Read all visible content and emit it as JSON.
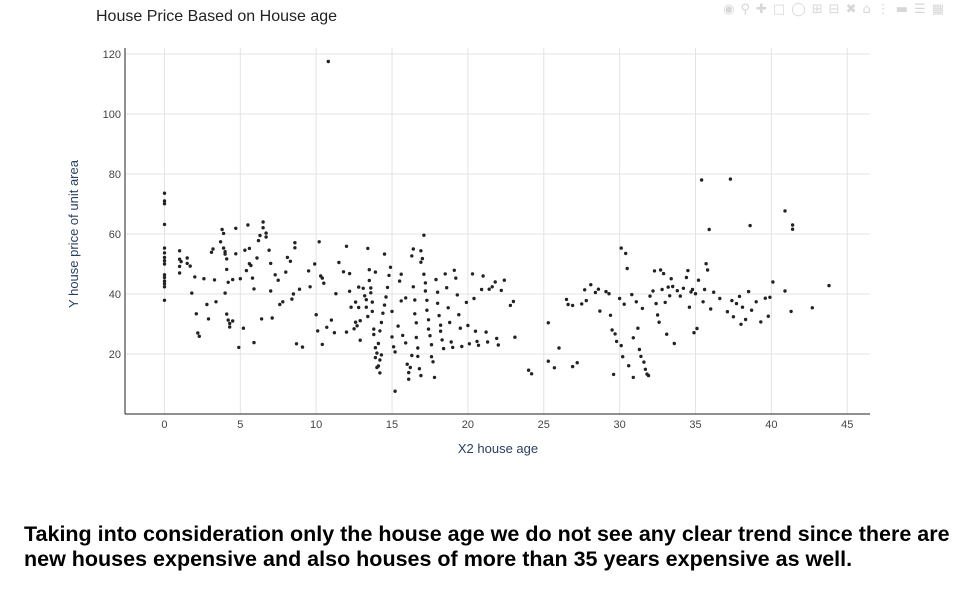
{
  "toolbar": {
    "icons": [
      "camera-icon",
      "zoom-icon",
      "pan-icon",
      "box-select-icon",
      "lasso-select-icon",
      "zoom-in-icon",
      "zoom-out-icon",
      "autoscale-icon",
      "reset-axes-icon",
      "spike-lines-icon",
      "hover-closest-icon",
      "hover-compare-icon",
      "plotly-logo-icon"
    ]
  },
  "chart_data": {
    "type": "scatter",
    "title": "House Price Based on House age",
    "xlabel": "X2 house age",
    "ylabel": "Y house price of unit area",
    "xlim": [
      -2.6,
      46.5
    ],
    "ylim": [
      0,
      122
    ],
    "xticks": [
      0,
      5,
      10,
      15,
      20,
      25,
      30,
      35,
      40,
      45
    ],
    "yticks": [
      20,
      40,
      60,
      80,
      100,
      120
    ],
    "grid": true,
    "legend": "none",
    "marker_color": "#222222",
    "points": [
      [
        0,
        73.6
      ],
      [
        0,
        71.0
      ],
      [
        0,
        70.1
      ],
      [
        0,
        63.2
      ],
      [
        0,
        55.3
      ],
      [
        0,
        53.7
      ],
      [
        0,
        52.2
      ],
      [
        0,
        51.1
      ],
      [
        0,
        50.0
      ],
      [
        0,
        46.4
      ],
      [
        0,
        45.5
      ],
      [
        0,
        44.3
      ],
      [
        0,
        43.4
      ],
      [
        0,
        42.4
      ],
      [
        0,
        37.9
      ],
      [
        1.0,
        54.4
      ],
      [
        1.0,
        51.6
      ],
      [
        1.0,
        49.2
      ],
      [
        1.0,
        47.0
      ],
      [
        1.1,
        50.8
      ],
      [
        1.5,
        50.2
      ],
      [
        1.7,
        49.3
      ],
      [
        1.5,
        52.0
      ],
      [
        2.0,
        45.7
      ],
      [
        1.8,
        40.3
      ],
      [
        2.1,
        33.4
      ],
      [
        2.2,
        27.0
      ],
      [
        2.3,
        25.9
      ],
      [
        2.6,
        45.1
      ],
      [
        2.8,
        36.5
      ],
      [
        2.9,
        31.7
      ],
      [
        3.2,
        55.0
      ],
      [
        3.1,
        53.9
      ],
      [
        3.3,
        44.7
      ],
      [
        3.4,
        37.4
      ],
      [
        3.7,
        57.4
      ],
      [
        3.8,
        61.5
      ],
      [
        3.9,
        60.2
      ],
      [
        3.9,
        55.3
      ],
      [
        4.0,
        54.1
      ],
      [
        4.0,
        53.3
      ],
      [
        4.1,
        51.7
      ],
      [
        4.1,
        48.2
      ],
      [
        4.2,
        43.9
      ],
      [
        4.0,
        40.3
      ],
      [
        4.1,
        33.3
      ],
      [
        4.2,
        31.3
      ],
      [
        4.3,
        30.2
      ],
      [
        4.3,
        29.0
      ],
      [
        4.5,
        44.8
      ],
      [
        4.5,
        31.0
      ],
      [
        4.7,
        61.9
      ],
      [
        4.7,
        53.4
      ],
      [
        5.0,
        45.1
      ],
      [
        4.9,
        22.2
      ],
      [
        5.2,
        28.6
      ],
      [
        5.3,
        54.6
      ],
      [
        5.4,
        47.8
      ],
      [
        5.5,
        63.0
      ],
      [
        5.6,
        55.2
      ],
      [
        5.6,
        50.1
      ],
      [
        5.7,
        49.5
      ],
      [
        5.8,
        45.3
      ],
      [
        5.9,
        41.7
      ],
      [
        5.9,
        23.8
      ],
      [
        6.1,
        52.0
      ],
      [
        6.2,
        57.8
      ],
      [
        6.3,
        59.5
      ],
      [
        6.4,
        31.7
      ],
      [
        6.5,
        62.1
      ],
      [
        6.5,
        64.0
      ],
      [
        6.7,
        60.3
      ],
      [
        6.7,
        59.0
      ],
      [
        6.9,
        54.6
      ],
      [
        7.0,
        41.0
      ],
      [
        7.0,
        50.2
      ],
      [
        7.1,
        32.0
      ],
      [
        7.3,
        46.4
      ],
      [
        7.5,
        44.6
      ],
      [
        7.6,
        36.5
      ],
      [
        7.8,
        37.4
      ],
      [
        8.0,
        47.3
      ],
      [
        8.1,
        52.2
      ],
      [
        8.3,
        50.9
      ],
      [
        8.4,
        38.3
      ],
      [
        8.5,
        40.0
      ],
      [
        8.6,
        55.4
      ],
      [
        8.6,
        57.1
      ],
      [
        8.7,
        23.4
      ],
      [
        8.9,
        41.6
      ],
      [
        9.1,
        22.3
      ],
      [
        9.5,
        47.7
      ],
      [
        9.6,
        42.4
      ],
      [
        9.9,
        50.0
      ],
      [
        10.0,
        33.1
      ],
      [
        10.1,
        27.7
      ],
      [
        10.2,
        57.4
      ],
      [
        10.3,
        46.0
      ],
      [
        10.4,
        45.3
      ],
      [
        10.5,
        43.6
      ],
      [
        10.4,
        23.2
      ],
      [
        10.7,
        28.9
      ],
      [
        10.8,
        117.5
      ],
      [
        11.0,
        31.3
      ],
      [
        11.2,
        27.1
      ],
      [
        11.3,
        40.1
      ],
      [
        11.5,
        50.5
      ],
      [
        11.8,
        47.4
      ],
      [
        12.0,
        55.9
      ],
      [
        12.2,
        46.8
      ],
      [
        12.2,
        40.9
      ],
      [
        12.0,
        27.3
      ],
      [
        12.3,
        35.6
      ],
      [
        12.5,
        28.4
      ],
      [
        12.6,
        37.3
      ],
      [
        12.6,
        30.6
      ],
      [
        12.7,
        29.4
      ],
      [
        12.8,
        35.5
      ],
      [
        12.9,
        31.1
      ],
      [
        12.8,
        42.3
      ],
      [
        12.9,
        24.6
      ],
      [
        13.1,
        41.9
      ],
      [
        13.2,
        39.4
      ],
      [
        13.3,
        38.1
      ],
      [
        13.3,
        35.6
      ],
      [
        13.4,
        32.5
      ],
      [
        13.5,
        48.1
      ],
      [
        13.5,
        44.5
      ],
      [
        13.6,
        42.0
      ],
      [
        13.6,
        40.4
      ],
      [
        13.7,
        37.3
      ],
      [
        13.7,
        34.2
      ],
      [
        13.8,
        28.3
      ],
      [
        13.8,
        26.5
      ],
      [
        13.9,
        22.1
      ],
      [
        14.0,
        20.3
      ],
      [
        13.9,
        18.8
      ],
      [
        14.1,
        16.0
      ],
      [
        14.0,
        15.5
      ],
      [
        14.2,
        13.7
      ],
      [
        14.2,
        18.0
      ],
      [
        14.3,
        19.7
      ],
      [
        14.1,
        23.5
      ],
      [
        14.2,
        27.7
      ],
      [
        14.3,
        30.5
      ],
      [
        14.4,
        33.6
      ],
      [
        14.5,
        36.3
      ],
      [
        14.6,
        39.0
      ],
      [
        14.7,
        42.2
      ],
      [
        14.8,
        46.2
      ],
      [
        14.9,
        48.9
      ],
      [
        14.5,
        53.3
      ],
      [
        13.4,
        55.2
      ],
      [
        13.9,
        47.3
      ],
      [
        15.0,
        34.2
      ],
      [
        15.0,
        25.7
      ],
      [
        15.1,
        22.4
      ],
      [
        15.2,
        20.7
      ],
      [
        15.2,
        7.6
      ],
      [
        15.4,
        29.3
      ],
      [
        15.5,
        44.3
      ],
      [
        15.6,
        46.6
      ],
      [
        15.6,
        37.7
      ],
      [
        15.7,
        26.2
      ],
      [
        15.9,
        38.7
      ],
      [
        15.9,
        23.7
      ],
      [
        16.0,
        16.6
      ],
      [
        16.1,
        13.8
      ],
      [
        16.1,
        11.6
      ],
      [
        16.2,
        15.5
      ],
      [
        16.3,
        19.5
      ],
      [
        16.3,
        52.7
      ],
      [
        16.4,
        55.0
      ],
      [
        16.4,
        42.4
      ],
      [
        16.5,
        38.0
      ],
      [
        16.5,
        33.4
      ],
      [
        16.6,
        30.4
      ],
      [
        16.6,
        25.5
      ],
      [
        16.7,
        22.0
      ],
      [
        16.7,
        19.2
      ],
      [
        16.8,
        15.1
      ],
      [
        16.9,
        12.8
      ],
      [
        16.9,
        50.6
      ],
      [
        16.9,
        54.4
      ],
      [
        17.0,
        51.8
      ],
      [
        17.1,
        59.6
      ],
      [
        17.1,
        46.6
      ],
      [
        17.2,
        43.7
      ],
      [
        17.2,
        41.0
      ],
      [
        17.3,
        37.9
      ],
      [
        17.3,
        34.6
      ],
      [
        17.4,
        31.4
      ],
      [
        17.4,
        28.3
      ],
      [
        17.5,
        26.1
      ],
      [
        17.6,
        23.1
      ],
      [
        17.6,
        19.1
      ],
      [
        17.7,
        17.4
      ],
      [
        17.8,
        12.2
      ],
      [
        17.9,
        44.8
      ],
      [
        18.0,
        40.6
      ],
      [
        18.0,
        36.9
      ],
      [
        18.1,
        32.8
      ],
      [
        18.2,
        29.6
      ],
      [
        18.2,
        27.6
      ],
      [
        18.3,
        24.7
      ],
      [
        18.4,
        21.8
      ],
      [
        18.5,
        46.7
      ],
      [
        18.6,
        42.1
      ],
      [
        18.7,
        35.4
      ],
      [
        18.8,
        30.5
      ],
      [
        18.9,
        24.0
      ],
      [
        19.0,
        22.2
      ],
      [
        19.1,
        47.9
      ],
      [
        19.2,
        45.3
      ],
      [
        19.3,
        39.7
      ],
      [
        19.4,
        33.1
      ],
      [
        19.5,
        28.6
      ],
      [
        19.6,
        22.5
      ],
      [
        19.9,
        37.2
      ],
      [
        20.0,
        29.5
      ],
      [
        20.1,
        23.4
      ],
      [
        20.3,
        46.7
      ],
      [
        20.4,
        38.5
      ],
      [
        20.5,
        27.6
      ],
      [
        20.6,
        24.2
      ],
      [
        20.7,
        22.9
      ],
      [
        20.9,
        41.5
      ],
      [
        21.0,
        46.0
      ],
      [
        21.2,
        27.3
      ],
      [
        21.3,
        24.0
      ],
      [
        21.4,
        41.6
      ],
      [
        21.6,
        42.4
      ],
      [
        21.8,
        44.0
      ],
      [
        21.9,
        25.2
      ],
      [
        22.0,
        23.0
      ],
      [
        22.2,
        41.2
      ],
      [
        22.4,
        44.6
      ],
      [
        22.8,
        36.2
      ],
      [
        23.0,
        37.5
      ],
      [
        23.1,
        25.6
      ],
      [
        24.0,
        14.6
      ],
      [
        24.2,
        13.4
      ],
      [
        25.3,
        30.4
      ],
      [
        25.3,
        17.6
      ],
      [
        25.7,
        15.4
      ],
      [
        26.0,
        22.0
      ],
      [
        26.5,
        38.2
      ],
      [
        26.6,
        36.5
      ],
      [
        26.9,
        36.2
      ],
      [
        26.9,
        15.8
      ],
      [
        27.2,
        17.1
      ],
      [
        27.5,
        36.7
      ],
      [
        27.7,
        41.4
      ],
      [
        27.8,
        37.8
      ],
      [
        28.1,
        43.1
      ],
      [
        28.4,
        40.5
      ],
      [
        28.6,
        41.6
      ],
      [
        28.7,
        34.3
      ],
      [
        29.1,
        40.8
      ],
      [
        29.3,
        40.1
      ],
      [
        29.4,
        32.9
      ],
      [
        29.5,
        28.0
      ],
      [
        29.7,
        26.7
      ],
      [
        29.6,
        13.2
      ],
      [
        29.8,
        24.2
      ],
      [
        30.0,
        38.5
      ],
      [
        30.1,
        55.3
      ],
      [
        30.1,
        22.8
      ],
      [
        30.2,
        19.1
      ],
      [
        30.3,
        36.6
      ],
      [
        30.4,
        53.5
      ],
      [
        30.5,
        48.5
      ],
      [
        30.6,
        16.1
      ],
      [
        30.8,
        39.8
      ],
      [
        30.9,
        25.4
      ],
      [
        30.9,
        12.2
      ],
      [
        31.1,
        37.4
      ],
      [
        31.2,
        28.6
      ],
      [
        31.3,
        21.5
      ],
      [
        31.4,
        19.2
      ],
      [
        31.5,
        35.2
      ],
      [
        31.6,
        17.3
      ],
      [
        31.7,
        14.9
      ],
      [
        31.8,
        13.3
      ],
      [
        31.9,
        12.8
      ],
      [
        32.0,
        39.3
      ],
      [
        32.2,
        41.0
      ],
      [
        32.3,
        47.7
      ],
      [
        32.4,
        36.8
      ],
      [
        32.5,
        33.0
      ],
      [
        32.6,
        30.6
      ],
      [
        32.7,
        48.0
      ],
      [
        32.8,
        41.5
      ],
      [
        32.9,
        46.8
      ],
      [
        33.0,
        37.2
      ],
      [
        33.1,
        26.6
      ],
      [
        33.2,
        42.3
      ],
      [
        33.3,
        39.4
      ],
      [
        33.4,
        45.1
      ],
      [
        33.5,
        42.5
      ],
      [
        33.6,
        23.5
      ],
      [
        33.8,
        41.1
      ],
      [
        34.0,
        39.3
      ],
      [
        34.2,
        41.9
      ],
      [
        34.4,
        45.5
      ],
      [
        34.5,
        47.8
      ],
      [
        34.6,
        35.6
      ],
      [
        34.7,
        40.7
      ],
      [
        34.8,
        41.5
      ],
      [
        34.9,
        27.1
      ],
      [
        35.0,
        40.1
      ],
      [
        35.1,
        28.5
      ],
      [
        35.2,
        44.6
      ],
      [
        35.4,
        78.0
      ],
      [
        35.5,
        37.4
      ],
      [
        35.6,
        41.5
      ],
      [
        35.7,
        50.1
      ],
      [
        35.8,
        48.0
      ],
      [
        35.9,
        61.5
      ],
      [
        36.0,
        35.0
      ],
      [
        36.2,
        40.6
      ],
      [
        36.6,
        38.5
      ],
      [
        37.1,
        34.1
      ],
      [
        37.3,
        78.3
      ],
      [
        37.4,
        37.8
      ],
      [
        37.5,
        32.4
      ],
      [
        37.7,
        36.8
      ],
      [
        37.9,
        39.2
      ],
      [
        38.0,
        29.9
      ],
      [
        38.1,
        35.6
      ],
      [
        38.3,
        31.5
      ],
      [
        38.5,
        40.8
      ],
      [
        38.6,
        62.8
      ],
      [
        38.7,
        34.6
      ],
      [
        39.0,
        37.4
      ],
      [
        39.3,
        30.7
      ],
      [
        39.6,
        38.6
      ],
      [
        39.8,
        32.6
      ],
      [
        39.9,
        38.9
      ],
      [
        40.1,
        44.0
      ],
      [
        40.9,
        41.0
      ],
      [
        40.9,
        67.7
      ],
      [
        41.3,
        34.2
      ],
      [
        41.4,
        63.0
      ],
      [
        41.4,
        61.6
      ],
      [
        42.7,
        35.4
      ],
      [
        43.8,
        42.8
      ]
    ]
  },
  "caption": {
    "text": "Taking into consideration only the house age we do not see any clear trend since there are new houses expensive and also houses of more than 35 years expensive as well."
  }
}
